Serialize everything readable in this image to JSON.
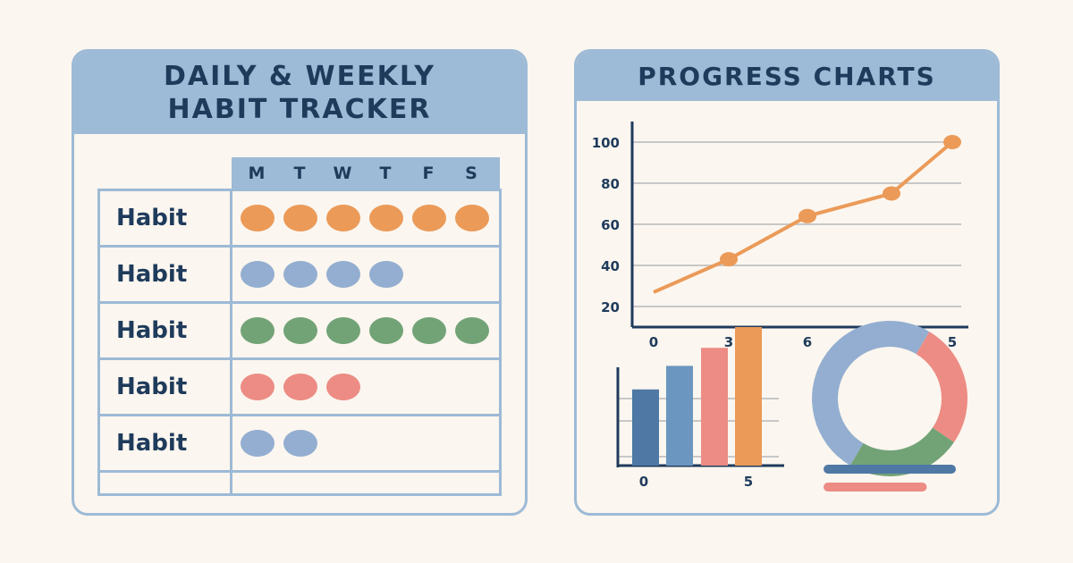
{
  "tracker": {
    "title_line1": "DAILY & WEEKLY",
    "title_line2": "HABIT TRACKER",
    "days": [
      "M",
      "T",
      "W",
      "T",
      "F",
      "S"
    ],
    "rows": [
      {
        "label": "Habit",
        "completed": 6,
        "color": "#eb9a58"
      },
      {
        "label": "Habit",
        "completed": 4,
        "color": "#93aed0"
      },
      {
        "label": "Habit",
        "completed": 6,
        "color": "#72a377"
      },
      {
        "label": "Habit",
        "completed": 3,
        "color": "#ec8c84"
      },
      {
        "label": "Habit",
        "completed": 2,
        "color": "#93aed0"
      }
    ]
  },
  "progress": {
    "title": "PROGRESS CHARTS"
  },
  "chart_data": [
    {
      "type": "line",
      "x_tick_labels": [
        "0",
        "3",
        "6",
        "5",
        "5"
      ],
      "y_ticks": [
        20,
        40,
        60,
        80,
        100
      ],
      "values": [
        27,
        43,
        64,
        75,
        100
      ],
      "marker_visible": [
        false,
        true,
        true,
        true,
        true
      ],
      "ylim": [
        10,
        110
      ],
      "grid": true,
      "color": "#eb9a58"
    },
    {
      "type": "bar",
      "x_tick_labels": [
        "0",
        "5"
      ],
      "values": [
        0.55,
        0.72,
        0.85,
        1.0
      ],
      "colors": [
        "#4f78a4",
        "#6b96c0",
        "#ec8c84",
        "#eb9a58"
      ],
      "grid": true
    },
    {
      "type": "pie",
      "style": "donut",
      "values": [
        0.5,
        0.26,
        0.24
      ],
      "colors": [
        "#93aed0",
        "#ec8c84",
        "#72a377"
      ],
      "legend_bars": [
        {
          "color": "#4f78a4",
          "fraction": 1.0
        },
        {
          "color": "#ec8c84",
          "fraction": 0.78
        }
      ]
    }
  ]
}
